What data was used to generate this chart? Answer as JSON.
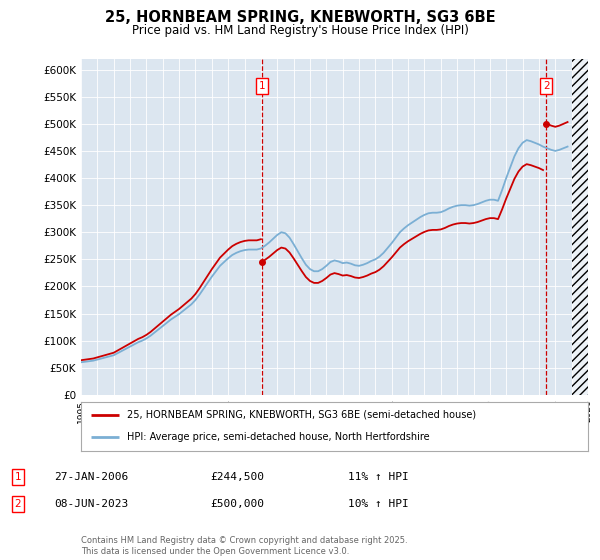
{
  "title": "25, HORNBEAM SPRING, KNEBWORTH, SG3 6BE",
  "subtitle": "Price paid vs. HM Land Registry's House Price Index (HPI)",
  "ylabel_ticks": [
    "£0",
    "£50K",
    "£100K",
    "£150K",
    "£200K",
    "£250K",
    "£300K",
    "£350K",
    "£400K",
    "£450K",
    "£500K",
    "£550K",
    "£600K"
  ],
  "ylim": [
    0,
    620000
  ],
  "ytick_vals": [
    0,
    50000,
    100000,
    150000,
    200000,
    250000,
    300000,
    350000,
    400000,
    450000,
    500000,
    550000,
    600000
  ],
  "xmin": 1995,
  "xmax": 2026,
  "background_color": "#dce6f0",
  "plot_bg": "#dce6f0",
  "line1_color": "#cc0000",
  "line2_color": "#7bafd4",
  "marker1_date": 2006.07,
  "marker2_date": 2023.44,
  "marker1_val": 244500,
  "marker2_val": 500000,
  "legend_line1": "25, HORNBEAM SPRING, KNEBWORTH, SG3 6BE (semi-detached house)",
  "legend_line2": "HPI: Average price, semi-detached house, North Hertfordshire",
  "annotation1_text": "27-JAN-2006",
  "annotation1_price": "£244,500",
  "annotation1_hpi": "11% ↑ HPI",
  "annotation2_text": "08-JUN-2023",
  "annotation2_price": "£500,000",
  "annotation2_hpi": "10% ↑ HPI",
  "footer": "Contains HM Land Registry data © Crown copyright and database right 2025.\nThis data is licensed under the Open Government Licence v3.0.",
  "hpi_years": [
    1995.0,
    1995.25,
    1995.5,
    1995.75,
    1996.0,
    1996.25,
    1996.5,
    1996.75,
    1997.0,
    1997.25,
    1997.5,
    1997.75,
    1998.0,
    1998.25,
    1998.5,
    1998.75,
    1999.0,
    1999.25,
    1999.5,
    1999.75,
    2000.0,
    2000.25,
    2000.5,
    2000.75,
    2001.0,
    2001.25,
    2001.5,
    2001.75,
    2002.0,
    2002.25,
    2002.5,
    2002.75,
    2003.0,
    2003.25,
    2003.5,
    2003.75,
    2004.0,
    2004.25,
    2004.5,
    2004.75,
    2005.0,
    2005.25,
    2005.5,
    2005.75,
    2006.0,
    2006.25,
    2006.5,
    2006.75,
    2007.0,
    2007.25,
    2007.5,
    2007.75,
    2008.0,
    2008.25,
    2008.5,
    2008.75,
    2009.0,
    2009.25,
    2009.5,
    2009.75,
    2010.0,
    2010.25,
    2010.5,
    2010.75,
    2011.0,
    2011.25,
    2011.5,
    2011.75,
    2012.0,
    2012.25,
    2012.5,
    2012.75,
    2013.0,
    2013.25,
    2013.5,
    2013.75,
    2014.0,
    2014.25,
    2014.5,
    2014.75,
    2015.0,
    2015.25,
    2015.5,
    2015.75,
    2016.0,
    2016.25,
    2016.5,
    2016.75,
    2017.0,
    2017.25,
    2017.5,
    2017.75,
    2018.0,
    2018.25,
    2018.5,
    2018.75,
    2019.0,
    2019.25,
    2019.5,
    2019.75,
    2020.0,
    2020.25,
    2020.5,
    2020.75,
    2021.0,
    2021.25,
    2021.5,
    2021.75,
    2022.0,
    2022.25,
    2022.5,
    2022.75,
    2023.0,
    2023.25,
    2023.5,
    2023.75,
    2024.0,
    2024.25,
    2024.5,
    2024.75
  ],
  "hpi_values": [
    60000,
    61000,
    62000,
    63000,
    65000,
    67000,
    69000,
    71000,
    73000,
    77000,
    81000,
    85000,
    89000,
    93000,
    97000,
    100000,
    104000,
    109000,
    115000,
    121000,
    127000,
    133000,
    139000,
    144000,
    149000,
    155000,
    161000,
    167000,
    175000,
    185000,
    196000,
    207000,
    218000,
    228000,
    238000,
    245000,
    252000,
    258000,
    262000,
    265000,
    267000,
    268000,
    268000,
    268000,
    270000,
    275000,
    281000,
    288000,
    295000,
    300000,
    298000,
    290000,
    278000,
    265000,
    252000,
    240000,
    232000,
    228000,
    228000,
    232000,
    238000,
    245000,
    248000,
    246000,
    243000,
    244000,
    242000,
    239000,
    238000,
    240000,
    243000,
    247000,
    250000,
    255000,
    262000,
    271000,
    280000,
    290000,
    300000,
    307000,
    313000,
    318000,
    323000,
    328000,
    332000,
    335000,
    336000,
    336000,
    337000,
    340000,
    344000,
    347000,
    349000,
    350000,
    350000,
    349000,
    350000,
    352000,
    355000,
    358000,
    360000,
    360000,
    358000,
    378000,
    400000,
    420000,
    440000,
    455000,
    465000,
    470000,
    468000,
    465000,
    462000,
    458000,
    455000,
    452000,
    450000,
    452000,
    455000,
    458000
  ],
  "sale1_year": 1995.7,
  "sale1_val": 67000,
  "sale2_year": 2006.07,
  "sale2_val": 244500,
  "sale3_year": 2023.44,
  "sale3_val": 500000
}
